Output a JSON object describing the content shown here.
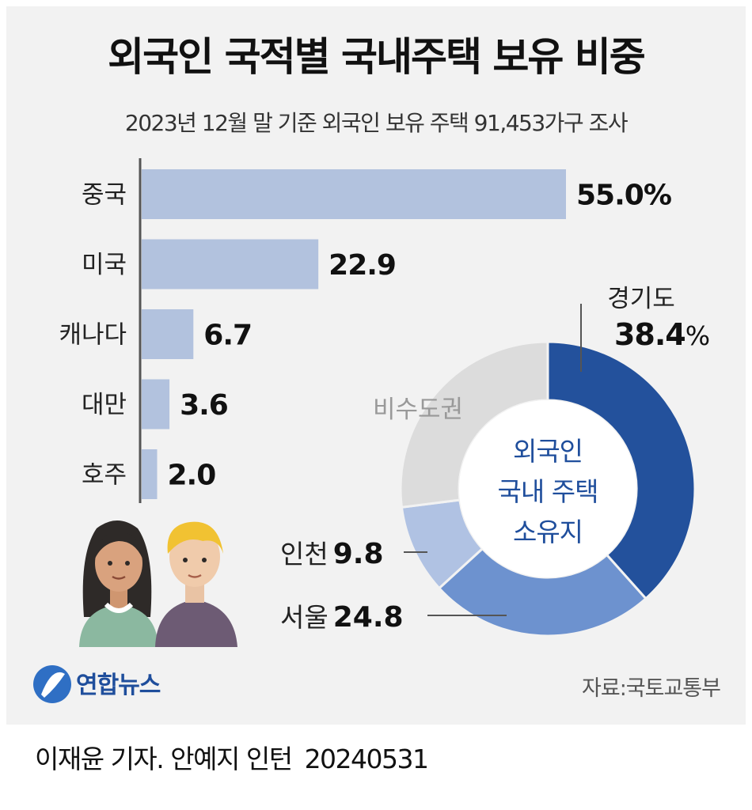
{
  "title": "외국인 국적별 국내주택 보유 비중",
  "subtitle": "2023년 12월 말 기준 외국인 보유 주택 91,453가구 조사",
  "source": "자료:국토교통부",
  "logo": "연합뉴스",
  "footer": {
    "byline": "이재윤 기자. 안예지 인턴",
    "date": "20240531"
  },
  "colors": {
    "bar": "#b2c2de",
    "donut_gyeonggi": "#23519c",
    "donut_seoul": "#6d92cf",
    "donut_incheon": "#b0c2e3",
    "donut_other": "#dcdcdc",
    "donut_center_text": "#1f4e9c"
  },
  "chart_data": [
    {
      "type": "bar",
      "orientation": "horizontal",
      "title": "외국인 국적별 국내주택 보유 비중",
      "categories": [
        "중국",
        "미국",
        "캐나다",
        "대만",
        "호주"
      ],
      "values": [
        55.0,
        22.9,
        6.7,
        3.6,
        2.0
      ],
      "value_labels": [
        "55.0%",
        "22.9",
        "6.7",
        "3.6",
        "2.0"
      ],
      "unit": "%"
    },
    {
      "type": "pie",
      "style": "donut",
      "center_label": [
        "외국인",
        "국내 주택",
        "소유지"
      ],
      "slices": [
        {
          "label": "경기도",
          "value": 38.4,
          "value_label": "38.4",
          "unit": "%"
        },
        {
          "label": "서울",
          "value": 24.8,
          "value_label": "24.8"
        },
        {
          "label": "인천",
          "value": 9.8,
          "value_label": "9.8"
        },
        {
          "label": "비수도권",
          "value": 27.0,
          "value_label": ""
        }
      ]
    }
  ]
}
